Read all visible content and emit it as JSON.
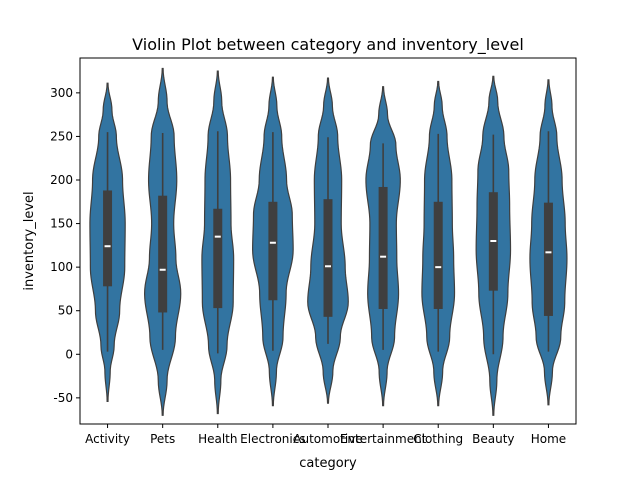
{
  "chart_data": {
    "type": "violin",
    "title": "Violin Plot between category and inventory_level",
    "xlabel": "category",
    "ylabel": "inventory_level",
    "ylim": [
      -80,
      340
    ],
    "yticks": [
      -50,
      0,
      50,
      100,
      150,
      200,
      250,
      300
    ],
    "grid": false,
    "colors": {
      "violin_fill": "#3274a1",
      "violin_edge": "#3f3f3f",
      "box": "#3f3f3f",
      "median": "#ffffff"
    },
    "categories": [
      "Activity",
      "Pets",
      "Health",
      "Electronics",
      "Automotive",
      "Entertainment",
      "Clothing",
      "Beauty",
      "Home"
    ],
    "series": [
      {
        "category": "Activity",
        "min": 3,
        "q1": 78,
        "median": 124,
        "q3": 188,
        "max": 255,
        "kde_min": -54,
        "kde_max": 311,
        "density": [
          [
            -54,
            0.02
          ],
          [
            -20,
            0.12
          ],
          [
            10,
            0.3
          ],
          [
            50,
            0.55
          ],
          [
            100,
            0.78
          ],
          [
            150,
            0.8
          ],
          [
            200,
            0.68
          ],
          [
            250,
            0.4
          ],
          [
            280,
            0.2
          ],
          [
            311,
            0.02
          ]
        ]
      },
      {
        "category": "Pets",
        "min": 5,
        "q1": 48,
        "median": 97,
        "q3": 182,
        "max": 254,
        "kde_min": -70,
        "kde_max": 328,
        "density": [
          [
            -70,
            0.02
          ],
          [
            -30,
            0.2
          ],
          [
            20,
            0.58
          ],
          [
            70,
            0.82
          ],
          [
            110,
            0.6
          ],
          [
            150,
            0.5
          ],
          [
            200,
            0.64
          ],
          [
            250,
            0.52
          ],
          [
            290,
            0.2
          ],
          [
            328,
            0.02
          ]
        ]
      },
      {
        "category": "Health",
        "min": 1,
        "q1": 53,
        "median": 135,
        "q3": 167,
        "max": 256,
        "kde_min": -68,
        "kde_max": 325,
        "density": [
          [
            -68,
            0.02
          ],
          [
            -30,
            0.14
          ],
          [
            10,
            0.42
          ],
          [
            60,
            0.7
          ],
          [
            110,
            0.72
          ],
          [
            150,
            0.6
          ],
          [
            200,
            0.58
          ],
          [
            250,
            0.44
          ],
          [
            290,
            0.18
          ],
          [
            325,
            0.02
          ]
        ]
      },
      {
        "category": "Electronics",
        "min": 4,
        "q1": 62,
        "median": 128,
        "q3": 175,
        "max": 255,
        "kde_min": -59,
        "kde_max": 318,
        "density": [
          [
            -59,
            0.02
          ],
          [
            -20,
            0.16
          ],
          [
            20,
            0.46
          ],
          [
            70,
            0.6
          ],
          [
            120,
            0.92
          ],
          [
            160,
            0.88
          ],
          [
            200,
            0.62
          ],
          [
            250,
            0.4
          ],
          [
            285,
            0.18
          ],
          [
            318,
            0.02
          ]
        ]
      },
      {
        "category": "Automotive",
        "min": 12,
        "q1": 43,
        "median": 101,
        "q3": 178,
        "max": 249,
        "kde_min": -56,
        "kde_max": 317,
        "density": [
          [
            -56,
            0.02
          ],
          [
            -20,
            0.22
          ],
          [
            20,
            0.56
          ],
          [
            60,
            0.92
          ],
          [
            100,
            0.78
          ],
          [
            150,
            0.6
          ],
          [
            200,
            0.62
          ],
          [
            250,
            0.44
          ],
          [
            285,
            0.2
          ],
          [
            317,
            0.02
          ]
        ]
      },
      {
        "category": "Entertainment",
        "min": 5,
        "q1": 52,
        "median": 112,
        "q3": 192,
        "max": 242,
        "kde_min": -59,
        "kde_max": 307,
        "density": [
          [
            -59,
            0.02
          ],
          [
            -20,
            0.18
          ],
          [
            20,
            0.52
          ],
          [
            70,
            0.7
          ],
          [
            110,
            0.62
          ],
          [
            150,
            0.6
          ],
          [
            200,
            0.78
          ],
          [
            240,
            0.58
          ],
          [
            275,
            0.2
          ],
          [
            307,
            0.02
          ]
        ]
      },
      {
        "category": "Clothing",
        "min": 3,
        "q1": 52,
        "median": 100,
        "q3": 175,
        "max": 253,
        "kde_min": -59,
        "kde_max": 313,
        "density": [
          [
            -59,
            0.02
          ],
          [
            -20,
            0.2
          ],
          [
            20,
            0.52
          ],
          [
            70,
            0.74
          ],
          [
            110,
            0.7
          ],
          [
            150,
            0.64
          ],
          [
            200,
            0.62
          ],
          [
            250,
            0.4
          ],
          [
            285,
            0.18
          ],
          [
            313,
            0.02
          ]
        ]
      },
      {
        "category": "Beauty",
        "min": 0,
        "q1": 73,
        "median": 130,
        "q3": 186,
        "max": 252,
        "kde_min": -70,
        "kde_max": 319,
        "density": [
          [
            -70,
            0.02
          ],
          [
            -30,
            0.16
          ],
          [
            20,
            0.44
          ],
          [
            70,
            0.66
          ],
          [
            120,
            0.78
          ],
          [
            170,
            0.74
          ],
          [
            210,
            0.7
          ],
          [
            250,
            0.48
          ],
          [
            290,
            0.2
          ],
          [
            319,
            0.02
          ]
        ]
      },
      {
        "category": "Home",
        "min": 3,
        "q1": 44,
        "median": 117,
        "q3": 174,
        "max": 256,
        "kde_min": -58,
        "kde_max": 315,
        "density": [
          [
            -58,
            0.02
          ],
          [
            -20,
            0.18
          ],
          [
            20,
            0.56
          ],
          [
            60,
            0.74
          ],
          [
            110,
            0.84
          ],
          [
            150,
            0.76
          ],
          [
            200,
            0.62
          ],
          [
            250,
            0.38
          ],
          [
            285,
            0.16
          ],
          [
            315,
            0.02
          ]
        ]
      }
    ]
  }
}
